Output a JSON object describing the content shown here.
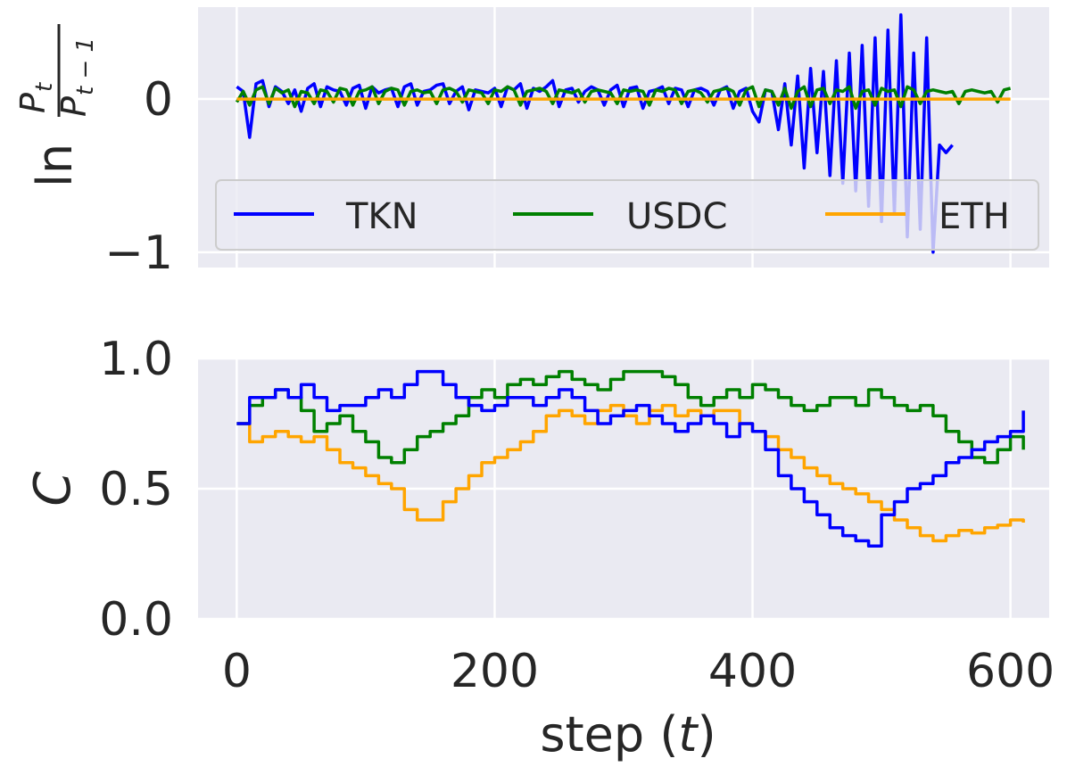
{
  "chart_data": [
    {
      "type": "line",
      "ylabel": "ln P_t / P_{t-1}",
      "ylabel_parts": {
        "prefix": "ln",
        "numerator": "P",
        "numerator_sub": "t",
        "denominator": "P",
        "denominator_sub": "t − 1"
      },
      "xlim": [
        -30,
        630
      ],
      "ylim": [
        -1.1,
        0.6
      ],
      "yticks": [
        0,
        -1
      ],
      "ytick_labels": [
        "0",
        "−1"
      ],
      "xticks": [
        0,
        200,
        400,
        600
      ],
      "xtick_labels_shown": false,
      "grid": true,
      "legend": {
        "placement": "lower-center",
        "ncol": 3
      },
      "series": [
        {
          "name": "TKN",
          "color": "#0000ff",
          "x_start": 0,
          "x_step": 5,
          "values": [
            0.08,
            0.05,
            -0.25,
            0.1,
            0.12,
            -0.05,
            0.08,
            0.05,
            -0.03,
            0.06,
            -0.08,
            0.07,
            0.1,
            -0.05,
            0.08,
            0.06,
            0.05,
            -0.04,
            0.07,
            0.09,
            -0.06,
            0.08,
            0.04,
            0.06,
            0.07,
            -0.05,
            0.08,
            0.1,
            -0.04,
            0.05,
            0.06,
            0.09,
            0.1,
            -0.03,
            0.05,
            0.08,
            -0.07,
            0.06,
            0.05,
            0.04,
            0.07,
            -0.05,
            0.08,
            0.06,
            0.1,
            -0.06,
            0.07,
            0.05,
            0.08,
            0.12,
            -0.05,
            0.06,
            0.07,
            -0.02,
            0.05,
            0.08,
            0.06,
            -0.04,
            0.06,
            0.09,
            -0.05,
            0.07,
            0.08,
            -0.06,
            0.05,
            0.06,
            0.08,
            -0.03,
            0.07,
            0.06,
            -0.05,
            0.06,
            0.07,
            0.05,
            -0.04,
            0.06,
            0.08,
            -0.06,
            0.05,
            0.07,
            -0.08,
            -0.15,
            0.06,
            0.05,
            -0.2,
            0.1,
            -0.3,
            0.15,
            -0.45,
            0.2,
            -0.35,
            0.18,
            -0.5,
            0.25,
            -0.55,
            0.3,
            -0.6,
            0.35,
            -0.7,
            0.4,
            -0.8,
            0.45,
            -0.75,
            0.55,
            -0.9,
            0.3,
            -0.85,
            0.4,
            -1.0,
            -0.3,
            -0.35,
            -0.3
          ]
        },
        {
          "name": "USDC",
          "color": "#008000",
          "x_start": 0,
          "x_step": 5,
          "values": [
            -0.02,
            0.05,
            -0.04,
            0.06,
            0.08,
            -0.03,
            0.07,
            0.04,
            0.06,
            -0.05,
            0.05,
            0.04,
            -0.03,
            0.06,
            0.05,
            -0.02,
            0.07,
            0.06,
            -0.04,
            0.05,
            0.06,
            0.08,
            -0.03,
            0.05,
            0.07,
            0.06,
            -0.04,
            0.05,
            0.06,
            0.04,
            0.05,
            -0.03,
            0.06,
            0.07,
            0.05,
            -0.02,
            0.06,
            0.05,
            0.04,
            -0.03,
            0.06,
            0.05,
            0.08,
            0.06,
            -0.04,
            0.05,
            0.06,
            0.07,
            0.05,
            -0.03,
            0.06,
            0.05,
            0.04,
            0.06,
            -0.02,
            0.05,
            0.06,
            0.05,
            0.04,
            -0.03,
            0.06,
            0.05,
            0.06,
            0.05,
            -0.04,
            0.06,
            0.05,
            0.07,
            0.06,
            -0.03,
            0.05,
            0.06,
            0.04,
            -0.02,
            0.05,
            0.06,
            0.07,
            0.05,
            -0.04,
            0.06,
            0.08,
            -0.05,
            0.06,
            0.05,
            -0.04,
            0.07,
            -0.06,
            0.05,
            0.08,
            -0.05,
            0.06,
            0.07,
            -0.03,
            0.06,
            0.05,
            0.08,
            -0.06,
            0.05,
            0.06,
            -0.04,
            0.07,
            0.05,
            0.06,
            -0.05,
            0.08,
            0.06,
            -0.03,
            0.05,
            0.06,
            0.05,
            0.04,
            0.05,
            -0.03,
            0.05,
            0.06,
            0.05,
            0.04,
            0.05,
            -0.02,
            0.06,
            0.07
          ]
        },
        {
          "name": "ETH",
          "color": "#ffa500",
          "x_start": 0,
          "x_step": 600,
          "values": [
            0,
            0
          ]
        }
      ]
    },
    {
      "type": "line",
      "ylabel": "C",
      "xlabel": "step (t)",
      "xlabel_parts": {
        "prefix": "step (",
        "var": "t",
        "suffix": ")"
      },
      "xlim": [
        -30,
        630
      ],
      "ylim": [
        0.0,
        1.0
      ],
      "yticks": [
        0.0,
        0.5,
        1.0
      ],
      "ytick_labels": [
        "0.0",
        "0.5",
        "1.0"
      ],
      "xticks": [
        0,
        200,
        400,
        600
      ],
      "xtick_labels": [
        "0",
        "200",
        "400",
        "600"
      ],
      "grid": true,
      "series": [
        {
          "name": "TKN",
          "color": "#0000ff",
          "x_start": 0,
          "x_step": 10,
          "values": [
            0.75,
            0.85,
            0.85,
            0.88,
            0.85,
            0.9,
            0.85,
            0.8,
            0.82,
            0.82,
            0.85,
            0.88,
            0.85,
            0.9,
            0.95,
            0.95,
            0.9,
            0.85,
            0.82,
            0.8,
            0.82,
            0.85,
            0.85,
            0.82,
            0.85,
            0.88,
            0.85,
            0.8,
            0.75,
            0.78,
            0.8,
            0.82,
            0.78,
            0.75,
            0.72,
            0.75,
            0.78,
            0.75,
            0.7,
            0.75,
            0.72,
            0.65,
            0.55,
            0.5,
            0.45,
            0.4,
            0.35,
            0.32,
            0.3,
            0.28,
            0.4,
            0.45,
            0.5,
            0.52,
            0.55,
            0.6,
            0.62,
            0.65,
            0.68,
            0.7,
            0.72,
            0.8
          ]
        },
        {
          "name": "USDC",
          "color": "#008000",
          "x_start": 0,
          "x_step": 10,
          "values": [
            0.75,
            0.82,
            0.85,
            0.88,
            0.85,
            0.8,
            0.72,
            0.75,
            0.78,
            0.72,
            0.68,
            0.62,
            0.6,
            0.65,
            0.7,
            0.72,
            0.75,
            0.78,
            0.85,
            0.88,
            0.85,
            0.9,
            0.92,
            0.9,
            0.93,
            0.95,
            0.92,
            0.9,
            0.88,
            0.92,
            0.95,
            0.95,
            0.95,
            0.93,
            0.9,
            0.85,
            0.82,
            0.85,
            0.88,
            0.85,
            0.9,
            0.88,
            0.85,
            0.82,
            0.8,
            0.82,
            0.85,
            0.85,
            0.82,
            0.88,
            0.85,
            0.82,
            0.8,
            0.82,
            0.78,
            0.72,
            0.68,
            0.62,
            0.6,
            0.65,
            0.7,
            0.65
          ]
        },
        {
          "name": "ETH",
          "color": "#ffa500",
          "x_start": 0,
          "x_step": 10,
          "values": [
            0.75,
            0.68,
            0.7,
            0.72,
            0.7,
            0.68,
            0.7,
            0.65,
            0.6,
            0.58,
            0.55,
            0.52,
            0.5,
            0.42,
            0.38,
            0.38,
            0.45,
            0.5,
            0.55,
            0.6,
            0.62,
            0.65,
            0.68,
            0.72,
            0.78,
            0.8,
            0.78,
            0.75,
            0.8,
            0.82,
            0.78,
            0.75,
            0.8,
            0.82,
            0.78,
            0.8,
            0.78,
            0.8,
            0.8,
            0.75,
            0.72,
            0.7,
            0.65,
            0.62,
            0.58,
            0.55,
            0.52,
            0.5,
            0.48,
            0.45,
            0.42,
            0.38,
            0.35,
            0.32,
            0.3,
            0.32,
            0.34,
            0.33,
            0.35,
            0.36,
            0.38,
            0.37
          ]
        }
      ]
    }
  ]
}
